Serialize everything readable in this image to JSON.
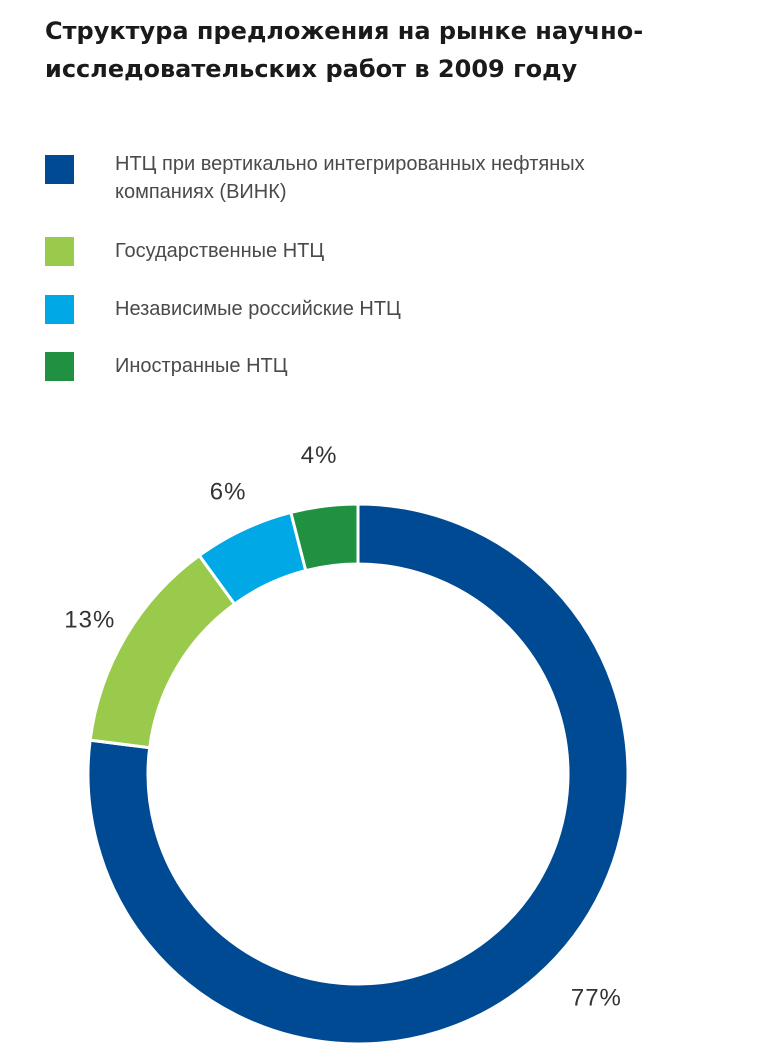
{
  "chart_data": {
    "type": "pie",
    "variant": "donut",
    "title": "Структура предложения на рынке научно-исследовательских работ в 2009 году",
    "categories": [
      "НТЦ при вертикально интегрированных нефтяных компаниях (ВИНК)",
      "Государственные НТЦ",
      "Независимые российские НТЦ",
      "Иностранные НТЦ"
    ],
    "values": [
      77,
      13,
      6,
      4
    ],
    "value_labels": [
      "77%",
      "13%",
      "6%",
      "4%"
    ],
    "colors": [
      "#004a93",
      "#99ca4c",
      "#00a9e6",
      "#1f9140"
    ],
    "legend_position": "top-left",
    "start_angle": "top",
    "direction": "clockwise"
  }
}
